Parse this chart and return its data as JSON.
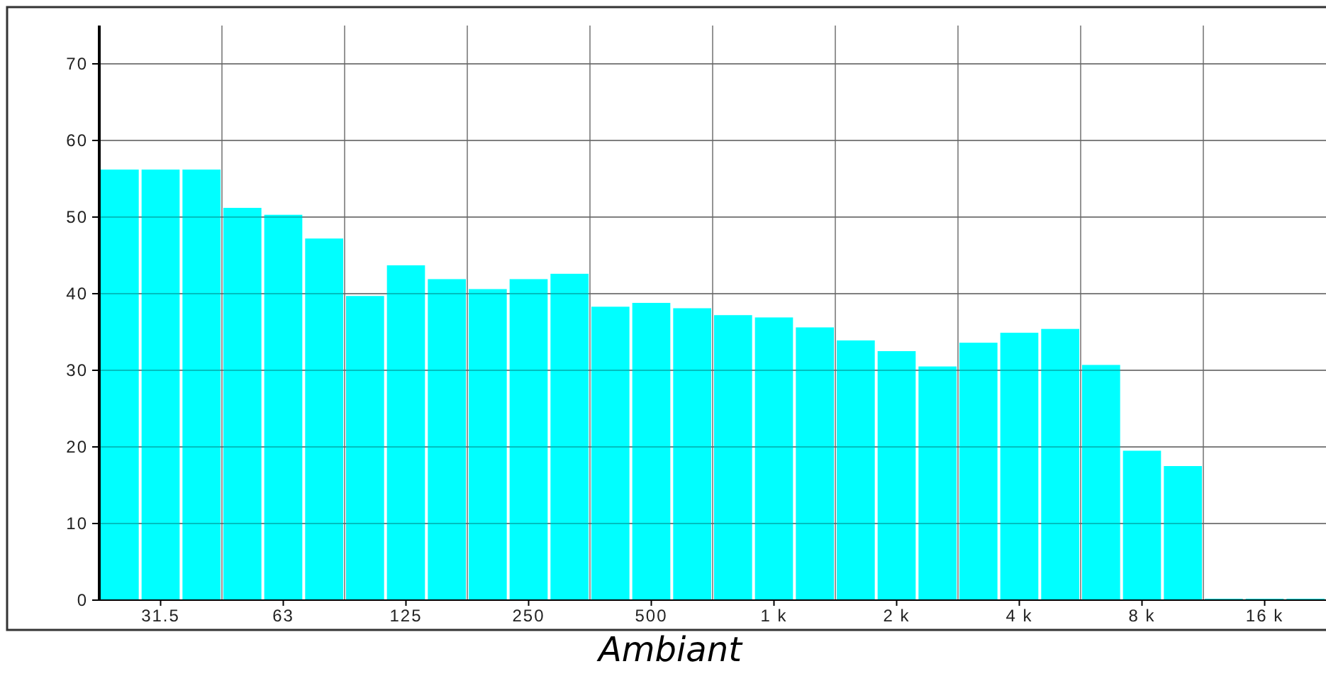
{
  "chart_data": {
    "type": "bar",
    "xlabel": "Ambiant",
    "categories": [
      null,
      "31.5",
      null,
      null,
      "63",
      null,
      null,
      "125",
      null,
      null,
      "250",
      null,
      null,
      "500",
      null,
      null,
      "1 k",
      null,
      null,
      "2 k",
      null,
      null,
      "4 k",
      null,
      null,
      "8 k",
      null,
      null,
      "16 k",
      null
    ],
    "values": [
      56.2,
      56.2,
      56.2,
      51.2,
      50.3,
      47.2,
      39.7,
      43.7,
      41.9,
      40.6,
      41.9,
      42.6,
      38.3,
      38.8,
      38.1,
      37.2,
      36.9,
      35.6,
      33.9,
      32.5,
      30.5,
      33.6,
      34.9,
      35.4,
      30.7,
      19.5,
      17.5,
      0,
      0,
      0
    ],
    "color": "#00ffff",
    "ylim": [
      0,
      75
    ],
    "yticks": [
      0,
      10,
      20,
      30,
      40,
      50,
      60,
      70
    ],
    "grid": true
  }
}
